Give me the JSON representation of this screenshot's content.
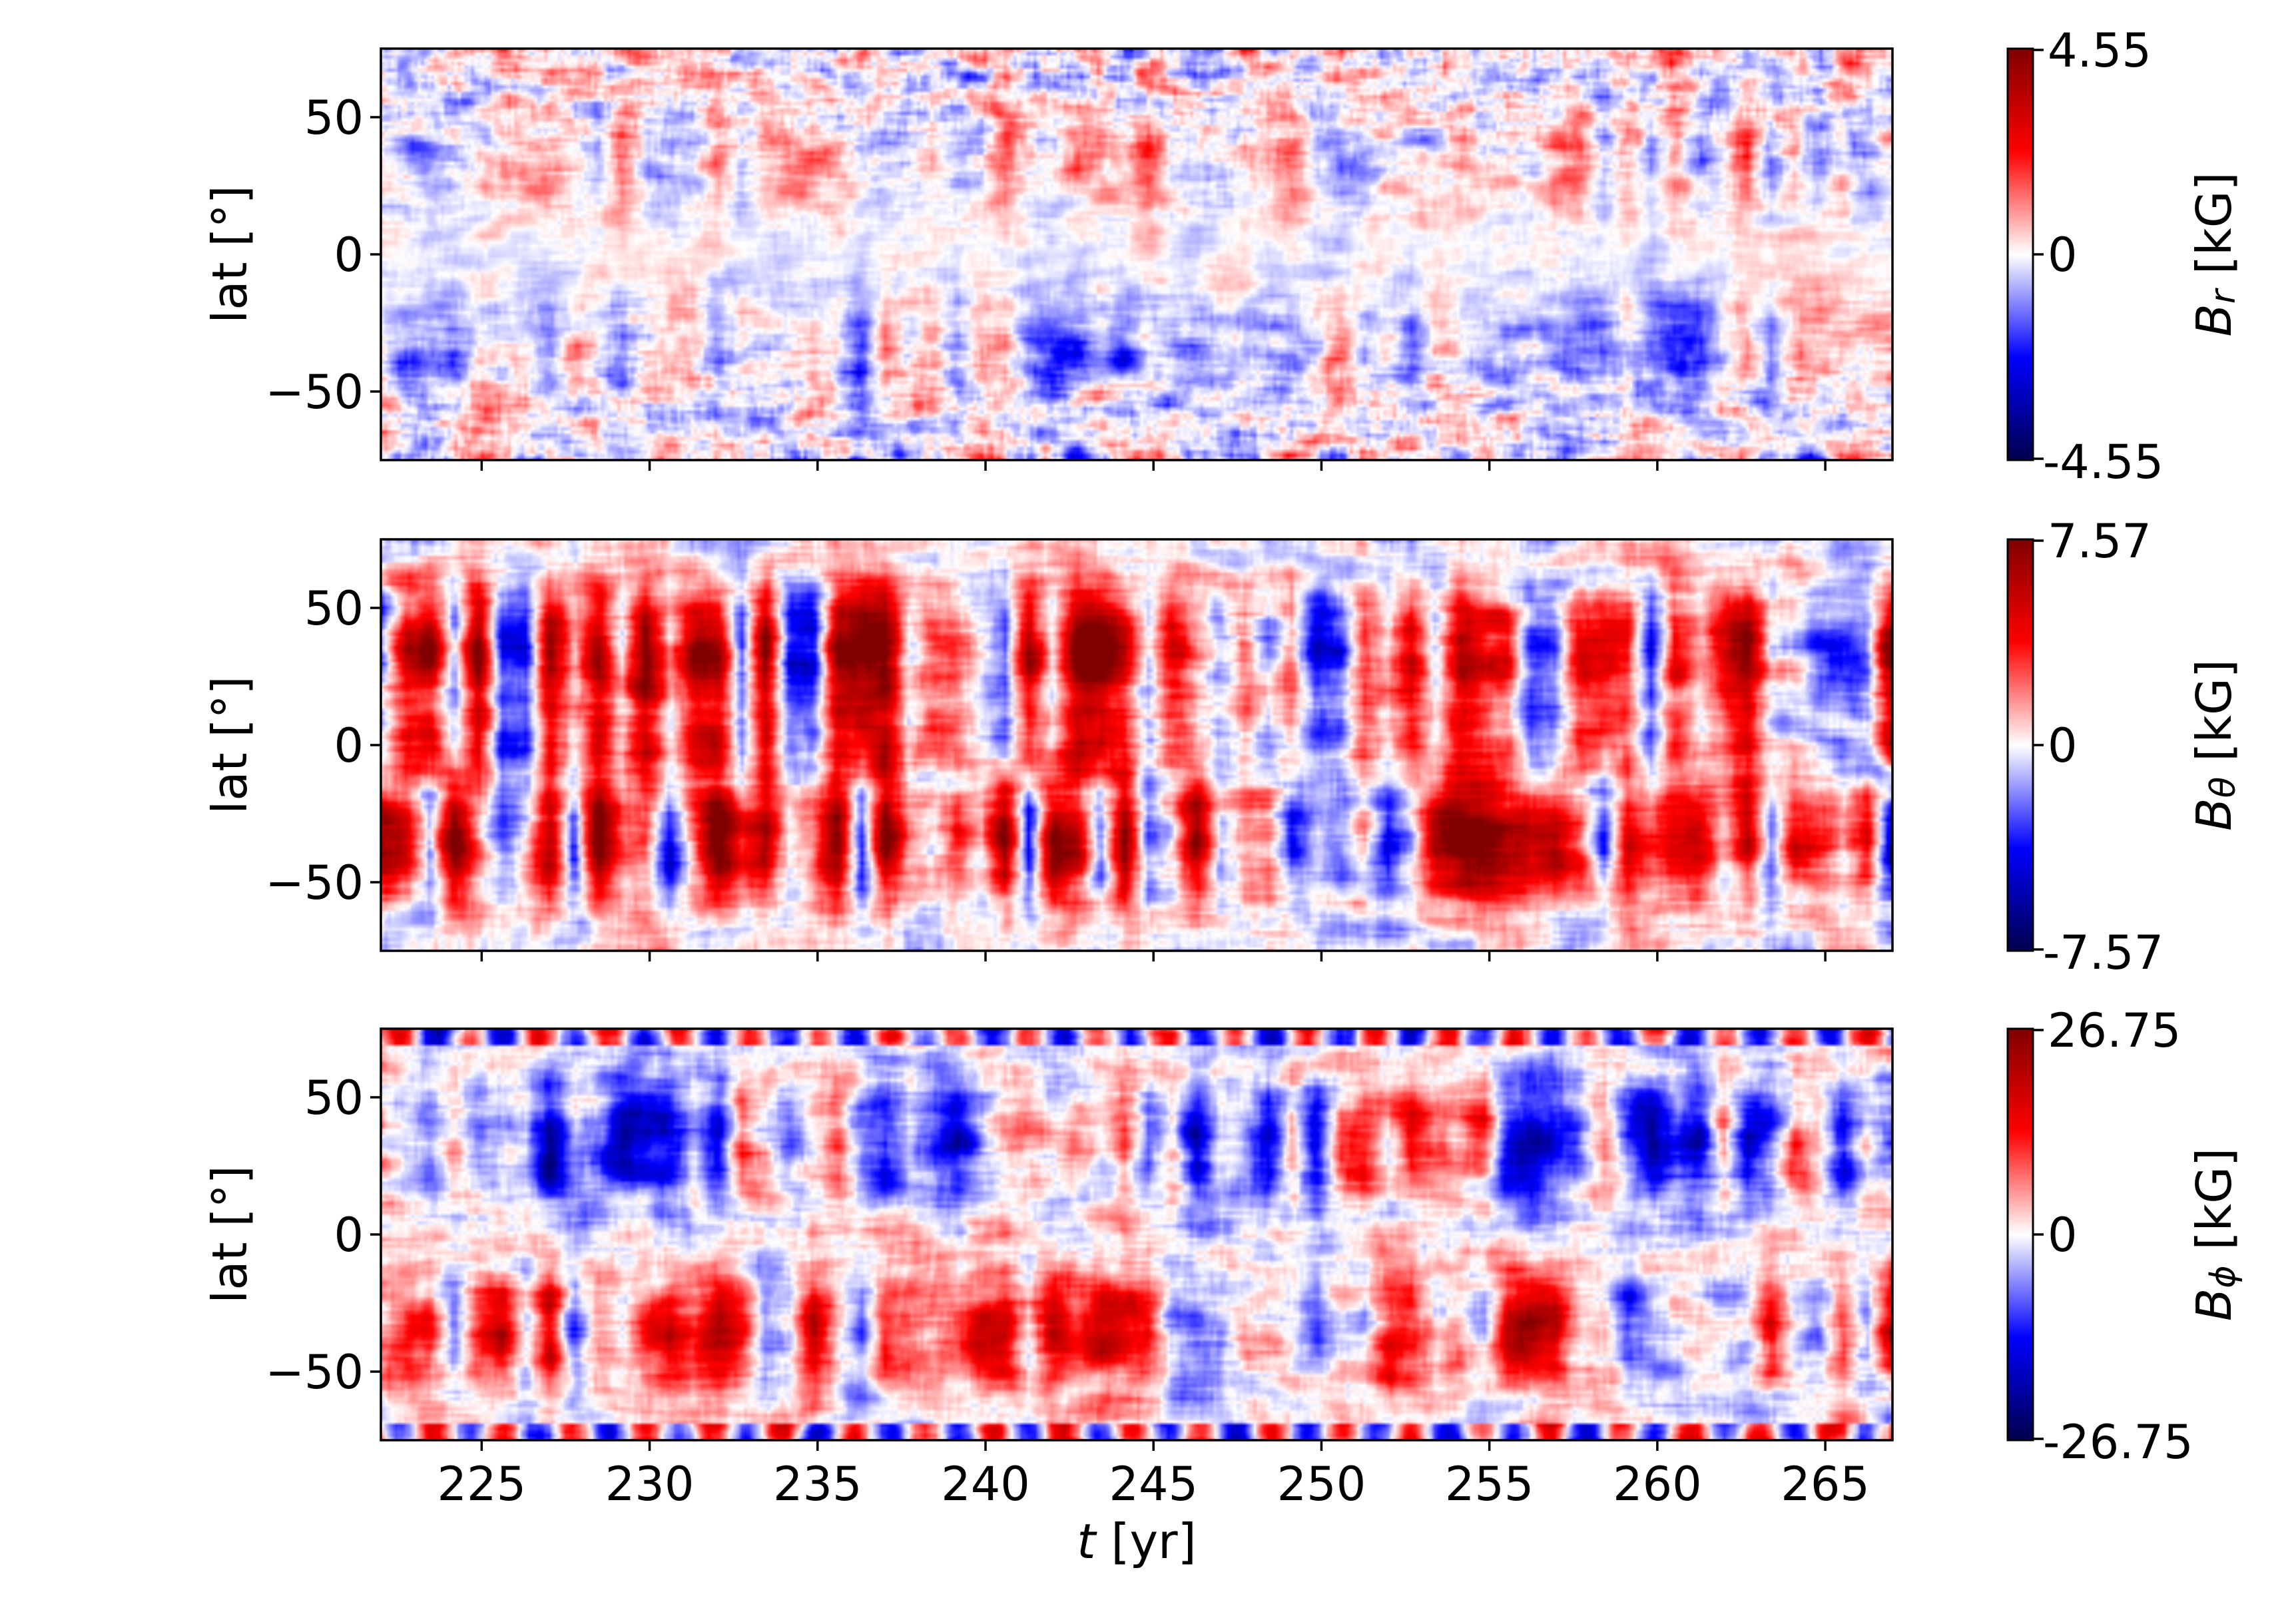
{
  "chart_data": [
    {
      "type": "heatmap",
      "quantity": "B_r",
      "ylabel": "lat [°]",
      "xlim": [
        222,
        267
      ],
      "ylim": [
        -75,
        75
      ],
      "yticks": [
        50,
        0,
        -50
      ],
      "ytick_labels": [
        "50",
        "0",
        "−50"
      ],
      "colorbar": {
        "label_symbol": "B",
        "label_sub": "r",
        "label_unit": " [kG]",
        "min": -4.55,
        "max": 4.55,
        "tick_labels": [
          "4.55",
          "0",
          "-4.55"
        ],
        "colormap": "seismic"
      },
      "x_ticklabels_visible": false
    },
    {
      "type": "heatmap",
      "quantity": "B_theta",
      "ylabel": "lat [°]",
      "xlim": [
        222,
        267
      ],
      "ylim": [
        -75,
        75
      ],
      "yticks": [
        50,
        0,
        -50
      ],
      "ytick_labels": [
        "50",
        "0",
        "−50"
      ],
      "colorbar": {
        "label_symbol": "B",
        "label_sub": "θ",
        "label_unit": " [kG]",
        "min": -7.57,
        "max": 7.57,
        "tick_labels": [
          "7.57",
          "0",
          "-7.57"
        ],
        "colormap": "seismic"
      },
      "x_ticklabels_visible": false
    },
    {
      "type": "heatmap",
      "quantity": "B_phi",
      "ylabel": "lat [°]",
      "xlabel_symbol": "t",
      "xlabel_unit": " [yr]",
      "xlim": [
        222,
        267
      ],
      "ylim": [
        -75,
        75
      ],
      "xticks": [
        225,
        230,
        235,
        240,
        245,
        250,
        255,
        260,
        265
      ],
      "xtick_labels": [
        "225",
        "230",
        "235",
        "240",
        "245",
        "250",
        "255",
        "260",
        "265"
      ],
      "yticks": [
        50,
        0,
        -50
      ],
      "ytick_labels": [
        "50",
        "0",
        "−50"
      ],
      "colorbar": {
        "label_symbol": "B",
        "label_sub": "ϕ",
        "label_unit": " [kG]",
        "min": -26.75,
        "max": 26.75,
        "tick_labels": [
          "26.75",
          "0",
          "-26.75"
        ],
        "colormap": "seismic"
      },
      "x_ticklabels_visible": true
    }
  ],
  "colors": {
    "seismic_low": "#00004d",
    "seismic_mid_low": "#0000ff",
    "seismic_center": "#ffffff",
    "seismic_mid_high": "#ff0000",
    "seismic_high": "#800000"
  }
}
